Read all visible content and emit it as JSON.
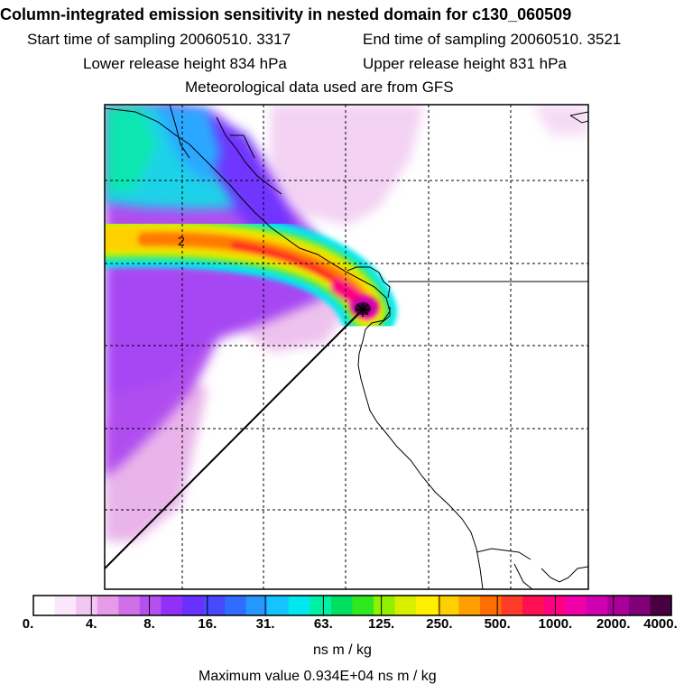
{
  "title": "Column-integrated emission sensitivity in nested domain for c130_060509",
  "sampling": {
    "start_label": "Start time of sampling 20060510.  3317",
    "end_label": "End time of sampling 20060510.  3521"
  },
  "release": {
    "lower_label": "Lower release height  834 hPa",
    "upper_label": "Upper release height  831 hPa"
  },
  "met_label": "Meteorological data used are from GFS",
  "map": {
    "contour_label": "2",
    "release_marker": "star-marker"
  },
  "colorbar": {
    "tick_labels": [
      "0.",
      "4.",
      "8.",
      "16.",
      "31.",
      "63.",
      "125.",
      "250.",
      "500.",
      "1000.",
      "2000.",
      "4000."
    ],
    "colors": [
      "#ffffff",
      "#fbe7fb",
      "#f2c6f2",
      "#e59be8",
      "#d070e8",
      "#b450f0",
      "#9030f8",
      "#6a30ff",
      "#4848ff",
      "#2f6cff",
      "#2498ff",
      "#14c4ff",
      "#00e8ee",
      "#00f0a6",
      "#00e060",
      "#30e820",
      "#90f000",
      "#d8f000",
      "#fff000",
      "#ffd000",
      "#ffa000",
      "#ff6e00",
      "#ff3c2a",
      "#ff1050",
      "#ff0080",
      "#f000a8",
      "#d000b0",
      "#a80098",
      "#800078",
      "#480040"
    ]
  },
  "units_label": "ns m / kg",
  "max_label": "Maximum value  0.934E+04 ns m / kg"
}
